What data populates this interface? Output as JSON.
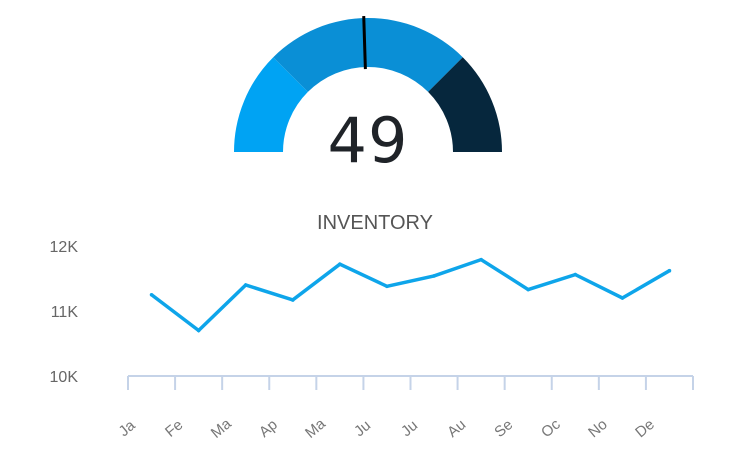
{
  "gauge": {
    "value": "49",
    "value_number": 49,
    "min": 0,
    "max": 100,
    "bands": [
      {
        "from": 0,
        "to": 25,
        "color": "#00a3f3"
      },
      {
        "from": 25,
        "to": 75,
        "color": "#0a8fd6"
      },
      {
        "from": 75,
        "to": 100,
        "color": "#06273d"
      }
    ],
    "needle_color": "#000000"
  },
  "chart_data": {
    "type": "line",
    "title": "INVENTORY",
    "categories": [
      "Ja",
      "Fe",
      "Ma",
      "Ap",
      "Ma",
      "Ju",
      "Ju",
      "Au",
      "Se",
      "Oc",
      "No",
      "De"
    ],
    "series": [
      {
        "values": [
          11250,
          10700,
          11400,
          11170,
          11720,
          11380,
          11540,
          11790,
          11330,
          11560,
          11200,
          11620
        ],
        "color": "#0ea5ea"
      }
    ],
    "yticks": [
      {
        "value": 10000,
        "label": "10K"
      },
      {
        "value": 11000,
        "label": "11K"
      },
      {
        "value": 12000,
        "label": "12K"
      }
    ],
    "ylim": [
      10000,
      12000
    ],
    "axis_color": "#c5d3e8",
    "grid": false
  }
}
